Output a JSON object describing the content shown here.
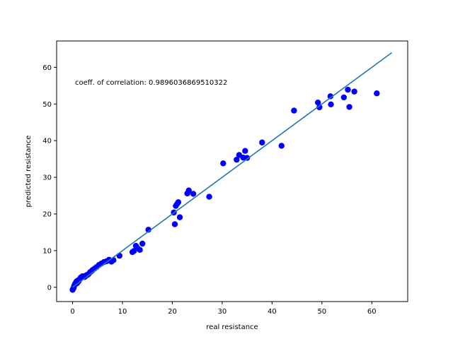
{
  "chart_data": {
    "type": "scatter",
    "title": "",
    "xlabel": "real resistance",
    "ylabel": "predicted resistance",
    "xlim": [
      -3.2,
      67.2
    ],
    "ylim": [
      -3.9,
      67.2
    ],
    "xticks": [
      0,
      10,
      20,
      30,
      40,
      50,
      60
    ],
    "yticks": [
      0,
      10,
      20,
      30,
      40,
      50,
      60
    ],
    "grid": false,
    "legend": "none",
    "annotation": "coeff. of correlation: 0.9896036869510322",
    "series": [
      {
        "kind": "scatter",
        "color": "#0000ff",
        "x": [
          0.0,
          0.1,
          0.2,
          0.3,
          0.4,
          0.5,
          0.6,
          0.7,
          0.8,
          0.9,
          1.0,
          1.1,
          1.2,
          1.4,
          1.5,
          1.6,
          1.8,
          2.0,
          2.2,
          2.4,
          2.6,
          2.8,
          3.0,
          3.2,
          3.5,
          3.8,
          4.0,
          4.4,
          4.8,
          5.3,
          5.8,
          6.3,
          6.8,
          7.3,
          7.8,
          8.2,
          9.4,
          12.0,
          12.3,
          12.7,
          13.0,
          13.5,
          14.0,
          15.2,
          20.3,
          20.5,
          20.7,
          21.0,
          21.2,
          21.5,
          23.0,
          23.3,
          24.2,
          27.4,
          30.2,
          32.9,
          33.4,
          34.2,
          34.6,
          35.0,
          38.0,
          41.9,
          44.4,
          49.2,
          49.5,
          51.7,
          51.8,
          54.4,
          55.2,
          55.5,
          56.5,
          61.0
        ],
        "y": [
          -0.7,
          -0.4,
          -0.2,
          0.3,
          0.6,
          0.9,
          1.1,
          1.3,
          1.6,
          1.1,
          1.4,
          1.9,
          1.6,
          2.1,
          2.3,
          2.6,
          2.8,
          3.0,
          3.0,
          2.8,
          3.1,
          3.3,
          3.4,
          3.6,
          4.1,
          4.4,
          4.7,
          5.1,
          5.5,
          6.1,
          6.5,
          6.9,
          7.1,
          7.5,
          7.0,
          7.4,
          8.6,
          9.6,
          9.9,
          11.3,
          10.7,
          10.2,
          11.9,
          15.7,
          20.4,
          17.2,
          22.2,
          22.8,
          23.2,
          19.1,
          25.6,
          26.4,
          25.5,
          24.7,
          33.8,
          34.8,
          36.1,
          35.4,
          37.2,
          35.3,
          39.5,
          38.6,
          48.2,
          50.4,
          49.1,
          52.1,
          49.9,
          51.8,
          53.9,
          49.2,
          53.4,
          52.9
        ]
      },
      {
        "kind": "line",
        "color": "#1f77b4",
        "x": [
          0,
          64
        ],
        "y": [
          0,
          64
        ]
      }
    ]
  }
}
